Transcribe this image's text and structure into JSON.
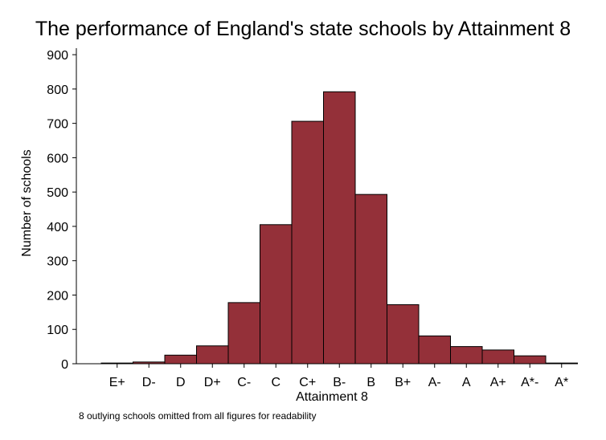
{
  "chart_data": {
    "type": "bar",
    "title": "The performance of England's state schools by Attainment 8",
    "xlabel": "Attainment 8",
    "ylabel": "Number of schools",
    "note": "8 outlying schools omitted from all figures for readability",
    "categories": [
      "E+",
      "D-",
      "D",
      "D+",
      "C-",
      "C",
      "C+",
      "B-",
      "B",
      "B+",
      "A-",
      "A",
      "A+",
      "A*-",
      "A*"
    ],
    "values": [
      2,
      5,
      25,
      52,
      178,
      405,
      706,
      792,
      493,
      172,
      81,
      50,
      40,
      23,
      2
    ],
    "ylim": [
      0,
      940
    ],
    "yticks": [
      0,
      100,
      200,
      300,
      400,
      500,
      600,
      700,
      800,
      900
    ],
    "grid": false,
    "colors": {
      "bar": "#943039",
      "bar_edge": "#000000",
      "axis": "#000000"
    }
  }
}
